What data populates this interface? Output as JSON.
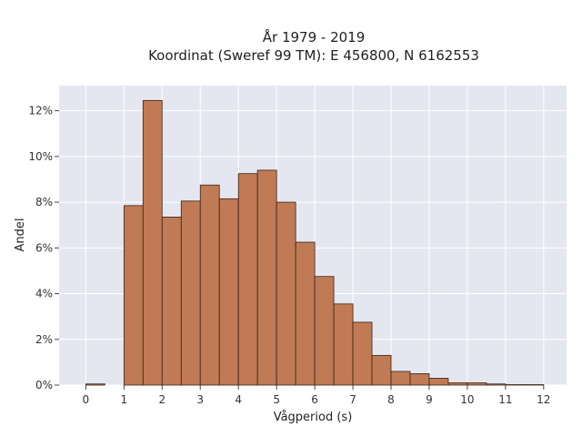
{
  "chart_data": {
    "type": "bar",
    "title_line1": "År 1979 - 2019",
    "title_line2": "Koordinat (Sweref 99 TM): E 456800, N 6162553",
    "xlabel": "Vågperiod (s)",
    "ylabel": "Andel",
    "xlim": [
      -0.7,
      12.6
    ],
    "ylim": [
      0,
      13.1
    ],
    "x_ticks": [
      0,
      1,
      2,
      3,
      4,
      5,
      6,
      7,
      8,
      9,
      10,
      11,
      12
    ],
    "y_ticks": [
      0,
      2,
      4,
      6,
      8,
      10,
      12
    ],
    "y_tick_labels": [
      "0%",
      "2%",
      "4%",
      "6%",
      "8%",
      "10%",
      "12%"
    ],
    "bin_width": 0.5,
    "bins": [
      {
        "x0": 0.0,
        "value": 0.05
      },
      {
        "x0": 1.0,
        "value": 7.85
      },
      {
        "x0": 1.5,
        "value": 12.45
      },
      {
        "x0": 2.0,
        "value": 7.35
      },
      {
        "x0": 2.5,
        "value": 8.05
      },
      {
        "x0": 3.0,
        "value": 8.75
      },
      {
        "x0": 3.5,
        "value": 8.15
      },
      {
        "x0": 4.0,
        "value": 9.25
      },
      {
        "x0": 4.5,
        "value": 9.4
      },
      {
        "x0": 5.0,
        "value": 8.0
      },
      {
        "x0": 5.5,
        "value": 6.25
      },
      {
        "x0": 6.0,
        "value": 4.75
      },
      {
        "x0": 6.5,
        "value": 3.55
      },
      {
        "x0": 7.0,
        "value": 2.75
      },
      {
        "x0": 7.5,
        "value": 1.3
      },
      {
        "x0": 8.0,
        "value": 0.6
      },
      {
        "x0": 8.5,
        "value": 0.5
      },
      {
        "x0": 9.0,
        "value": 0.3
      },
      {
        "x0": 9.5,
        "value": 0.1
      },
      {
        "x0": 10.0,
        "value": 0.1
      },
      {
        "x0": 10.5,
        "value": 0.05
      },
      {
        "x0": 11.0,
        "value": 0.02
      },
      {
        "x0": 11.5,
        "value": 0.02
      }
    ],
    "grid": true,
    "colors": {
      "bar_fill": "#c07a55",
      "bar_edge": "#3a2418",
      "plot_bg": "#e5e7f0",
      "grid": "#ffffff"
    }
  }
}
